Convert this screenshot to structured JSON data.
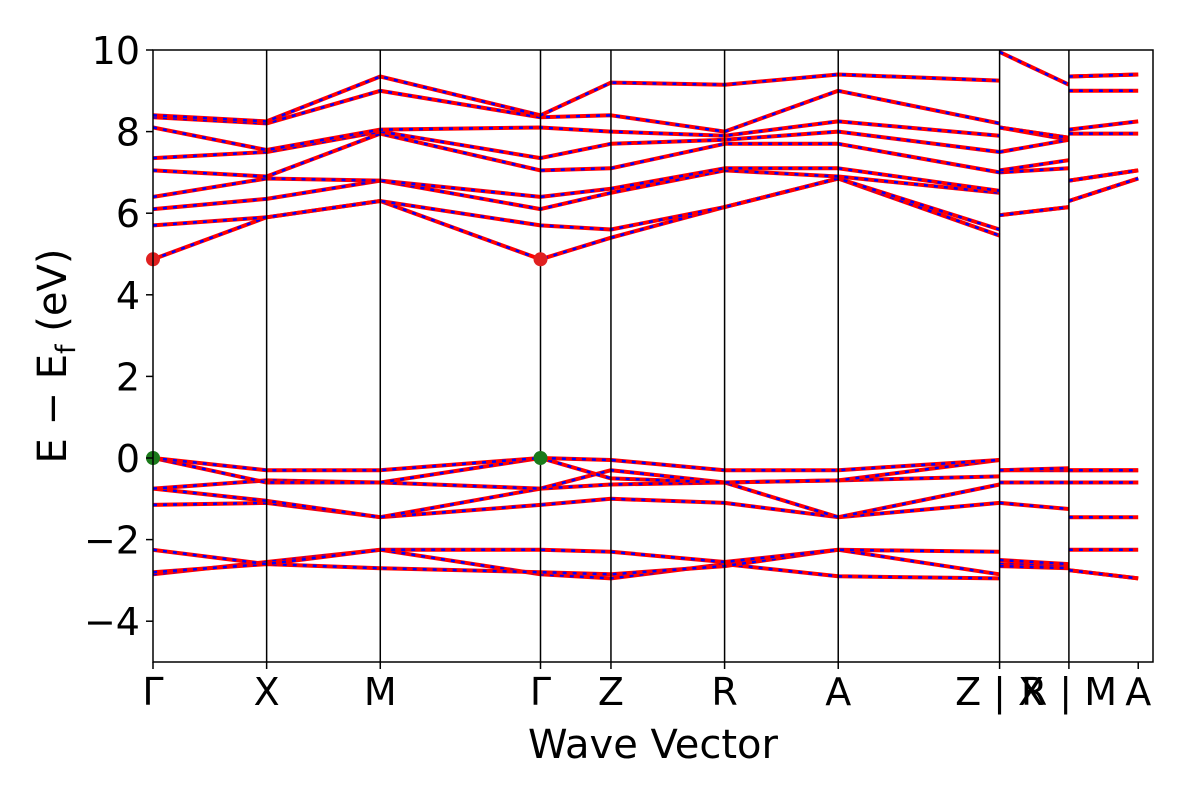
{
  "chart_data": {
    "type": "line",
    "title": "",
    "xlabel": "Wave Vector",
    "ylabel": "E − E",
    "ylabel_sub": "f",
    "ylabel_unit": " (eV)",
    "ylim": [
      -5,
      10
    ],
    "xlim": [
      0,
      8.8
    ],
    "grid": false,
    "legend": "none",
    "yticks": [
      -4,
      -2,
      0,
      2,
      4,
      6,
      8,
      10
    ],
    "ytick_labels": [
      "−4",
      "−2",
      "0",
      "2",
      "4",
      "6",
      "8",
      "10"
    ],
    "kpoint_labels": [
      "Γ",
      "X",
      "M",
      "Γ",
      "Z",
      "R",
      "A",
      "Z | X",
      "R | M",
      "A"
    ],
    "kpoint_positions": [
      0,
      1.0,
      2.0,
      3.41,
      4.03,
      5.03,
      6.03,
      7.45,
      8.06,
      8.67
    ],
    "colors": {
      "spin_up": "#ff0000",
      "spin_down": "#0000ff",
      "vbm": "#1a7a1a",
      "cbm": "#e02020"
    },
    "markers": [
      {
        "name": "VBM",
        "points": [
          [
            0,
            0
          ],
          [
            3.41,
            0
          ]
        ]
      },
      {
        "name": "CBM",
        "points": [
          [
            0,
            4.87
          ],
          [
            3.41,
            4.87
          ]
        ]
      }
    ],
    "bands": [
      [
        [
          0,
          -2.85
        ],
        [
          1.0,
          -2.55
        ],
        [
          2.0,
          -2.25
        ],
        [
          3.41,
          -2.85
        ],
        [
          4.03,
          -2.95
        ],
        [
          5.03,
          -2.6
        ],
        [
          6.03,
          -2.9
        ],
        [
          7.45,
          -2.95
        ],
        [
          7.45,
          -2.6
        ],
        [
          8.06,
          -2.65
        ],
        [
          8.06,
          -2.75
        ],
        [
          8.67,
          -2.95
        ]
      ],
      [
        [
          0,
          -2.8
        ],
        [
          1.0,
          -2.6
        ],
        [
          2.0,
          -2.7
        ],
        [
          3.41,
          -2.8
        ],
        [
          4.03,
          -2.85
        ],
        [
          5.03,
          -2.65
        ],
        [
          6.03,
          -2.25
        ],
        [
          7.45,
          -2.85
        ],
        [
          7.45,
          -2.65
        ],
        [
          8.06,
          -2.7
        ],
        [
          8.06,
          -2.75
        ],
        [
          8.67,
          -2.95
        ]
      ],
      [
        [
          0,
          -2.25
        ],
        [
          1.0,
          -2.6
        ],
        [
          2.0,
          -2.25
        ],
        [
          3.41,
          -2.25
        ],
        [
          4.03,
          -2.3
        ],
        [
          5.03,
          -2.55
        ],
        [
          6.03,
          -2.25
        ],
        [
          7.45,
          -2.3
        ],
        [
          7.45,
          -2.5
        ],
        [
          8.06,
          -2.6
        ],
        [
          8.06,
          -2.25
        ],
        [
          8.67,
          -2.25
        ]
      ],
      [
        [
          0,
          -1.15
        ],
        [
          1.0,
          -1.1
        ],
        [
          2.0,
          -1.45
        ],
        [
          3.41,
          -1.15
        ],
        [
          4.03,
          -1.0
        ],
        [
          5.03,
          -1.1
        ],
        [
          6.03,
          -1.45
        ],
        [
          7.45,
          -1.1
        ],
        [
          7.45,
          -1.1
        ],
        [
          8.06,
          -1.25
        ],
        [
          8.06,
          -1.45
        ],
        [
          8.67,
          -1.45
        ]
      ],
      [
        [
          0,
          -0.75
        ],
        [
          1.0,
          -1.05
        ],
        [
          2.0,
          -1.45
        ],
        [
          3.41,
          -0.75
        ],
        [
          4.03,
          -0.65
        ],
        [
          5.03,
          -0.6
        ],
        [
          6.03,
          -1.45
        ],
        [
          7.45,
          -0.65
        ],
        [
          7.45,
          -0.6
        ],
        [
          8.06,
          -0.6
        ],
        [
          8.06,
          -0.6
        ],
        [
          8.67,
          -0.6
        ]
      ],
      [
        [
          0,
          -0.75
        ],
        [
          1.0,
          -0.55
        ],
        [
          2.0,
          -0.6
        ],
        [
          3.41,
          -0.75
        ],
        [
          4.03,
          -0.3
        ],
        [
          5.03,
          -0.6
        ],
        [
          6.03,
          -0.55
        ],
        [
          7.45,
          -0.45
        ],
        [
          7.45,
          -0.6
        ],
        [
          8.06,
          -0.6
        ],
        [
          8.06,
          -0.6
        ],
        [
          8.67,
          -0.6
        ]
      ],
      [
        [
          0,
          0
        ],
        [
          1.0,
          -0.6
        ],
        [
          2.0,
          -0.6
        ],
        [
          3.41,
          0
        ],
        [
          4.03,
          -0.5
        ],
        [
          5.03,
          -0.6
        ],
        [
          6.03,
          -0.55
        ],
        [
          7.45,
          -0.05
        ],
        [
          7.45,
          -0.3
        ],
        [
          8.06,
          -0.3
        ],
        [
          8.06,
          -0.3
        ],
        [
          8.67,
          -0.3
        ]
      ],
      [
        [
          0,
          0
        ],
        [
          1.0,
          -0.3
        ],
        [
          2.0,
          -0.3
        ],
        [
          3.41,
          0
        ],
        [
          4.03,
          -0.05
        ],
        [
          5.03,
          -0.3
        ],
        [
          6.03,
          -0.3
        ],
        [
          7.45,
          -0.05
        ],
        [
          7.45,
          -0.3
        ],
        [
          8.06,
          -0.25
        ],
        [
          8.06,
          -0.3
        ],
        [
          8.67,
          -0.3
        ]
      ],
      [
        [
          0,
          4.87
        ],
        [
          1.0,
          5.9
        ],
        [
          2.0,
          6.3
        ],
        [
          3.41,
          4.87
        ],
        [
          4.03,
          5.4
        ],
        [
          5.03,
          6.15
        ],
        [
          6.03,
          6.85
        ],
        [
          7.45,
          5.45
        ],
        [
          7.45,
          5.95
        ],
        [
          8.06,
          6.15
        ],
        [
          8.06,
          6.3
        ],
        [
          8.67,
          6.85
        ]
      ],
      [
        [
          0,
          5.7
        ],
        [
          1.0,
          5.9
        ],
        [
          2.0,
          6.3
        ],
        [
          3.41,
          5.7
        ],
        [
          4.03,
          5.6
        ],
        [
          5.03,
          6.15
        ],
        [
          6.03,
          6.85
        ],
        [
          7.45,
          5.6
        ],
        [
          7.45,
          5.95
        ],
        [
          8.06,
          6.15
        ],
        [
          8.06,
          6.3
        ],
        [
          8.67,
          6.85
        ]
      ],
      [
        [
          0,
          6.1
        ],
        [
          1.0,
          6.35
        ],
        [
          2.0,
          6.8
        ],
        [
          3.41,
          6.1
        ],
        [
          4.03,
          6.5
        ],
        [
          5.03,
          7.05
        ],
        [
          6.03,
          6.9
        ],
        [
          7.45,
          6.5
        ],
        [
          7.45,
          7.0
        ],
        [
          8.06,
          7.1
        ],
        [
          8.06,
          6.8
        ],
        [
          8.67,
          7.05
        ]
      ],
      [
        [
          0,
          6.4
        ],
        [
          1.0,
          6.85
        ],
        [
          2.0,
          6.8
        ],
        [
          3.41,
          6.4
        ],
        [
          4.03,
          6.6
        ],
        [
          5.03,
          7.1
        ],
        [
          6.03,
          7.1
        ],
        [
          7.45,
          6.55
        ],
        [
          7.45,
          7.05
        ],
        [
          8.06,
          7.3
        ],
        [
          8.06,
          6.8
        ],
        [
          8.67,
          7.05
        ]
      ],
      [
        [
          0,
          7.05
        ],
        [
          1.0,
          6.9
        ],
        [
          2.0,
          7.95
        ],
        [
          3.41,
          7.05
        ],
        [
          4.03,
          7.1
        ],
        [
          5.03,
          7.7
        ],
        [
          6.03,
          7.7
        ],
        [
          7.45,
          7.0
        ],
        [
          7.45,
          7.5
        ],
        [
          8.06,
          7.8
        ],
        [
          8.06,
          7.95
        ],
        [
          8.67,
          7.95
        ]
      ],
      [
        [
          0,
          7.35
        ],
        [
          1.0,
          7.5
        ],
        [
          2.0,
          8.0
        ],
        [
          3.41,
          7.35
        ],
        [
          4.03,
          7.7
        ],
        [
          5.03,
          7.8
        ],
        [
          6.03,
          8.0
        ],
        [
          7.45,
          7.5
        ],
        [
          7.45,
          8.1
        ],
        [
          8.06,
          7.8
        ],
        [
          8.06,
          8.05
        ],
        [
          8.67,
          8.25
        ]
      ],
      [
        [
          0,
          8.1
        ],
        [
          1.0,
          7.55
        ],
        [
          2.0,
          8.05
        ],
        [
          3.41,
          8.1
        ],
        [
          4.03,
          8.0
        ],
        [
          5.03,
          7.9
        ],
        [
          6.03,
          8.25
        ],
        [
          7.45,
          7.9
        ],
        [
          7.45,
          8.1
        ],
        [
          8.06,
          7.85
        ],
        [
          8.06,
          9.0
        ],
        [
          8.67,
          9.0
        ]
      ],
      [
        [
          0,
          8.35
        ],
        [
          1.0,
          8.2
        ],
        [
          2.0,
          9.0
        ],
        [
          3.41,
          8.35
        ],
        [
          4.03,
          8.4
        ],
        [
          5.03,
          8.0
        ],
        [
          6.03,
          9.0
        ],
        [
          7.45,
          8.2
        ],
        [
          7.45,
          8.1
        ],
        [
          8.06,
          7.85
        ],
        [
          8.06,
          9.35
        ],
        [
          8.67,
          9.4
        ]
      ],
      [
        [
          0,
          8.4
        ],
        [
          1.0,
          8.25
        ],
        [
          2.0,
          9.35
        ],
        [
          3.41,
          8.4
        ],
        [
          4.03,
          9.2
        ],
        [
          5.03,
          9.15
        ],
        [
          6.03,
          9.4
        ],
        [
          7.45,
          9.25
        ],
        [
          7.45,
          9.95
        ],
        [
          8.06,
          9.15
        ],
        [
          8.06,
          9.35
        ],
        [
          8.67,
          9.4
        ]
      ]
    ]
  }
}
